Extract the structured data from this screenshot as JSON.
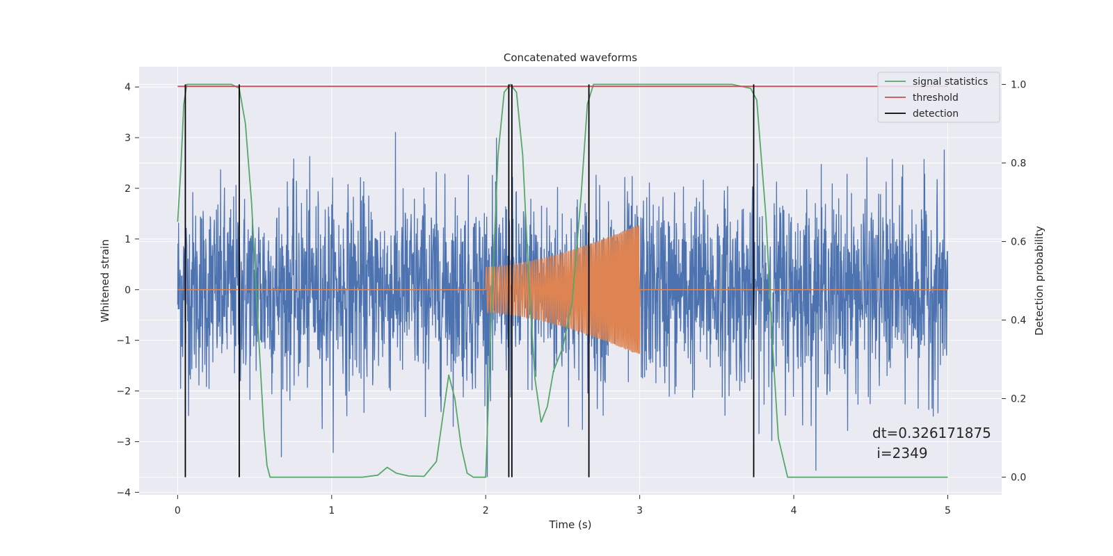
{
  "chart_data": {
    "type": "line",
    "title": "Concatenated waveforms",
    "xlabel": "Time (s)",
    "ylabel": "Whitened strain",
    "ylabel_right": "Detection probability",
    "xlim": [
      -0.25,
      5.35
    ],
    "ylim": [
      -4.05,
      4.4
    ],
    "ylim_right": [
      -0.045,
      1.045
    ],
    "x_ticks": [
      0,
      1,
      2,
      3,
      4,
      5
    ],
    "y_ticks": [
      -4,
      -3,
      -2,
      -1,
      0,
      1,
      2,
      3,
      4
    ],
    "y_ticks_right": [
      0.0,
      0.2,
      0.4,
      0.6,
      0.8,
      1.0
    ],
    "grid": true,
    "legend_position": "top-right",
    "series": [
      {
        "name": "",
        "axis": "left",
        "kind": "noise",
        "color": "#4c72b0",
        "x_range": [
          0,
          5
        ],
        "notes": "whitened strain noise, amplitude mostly within about ±2, peaks near ±4"
      },
      {
        "name": "",
        "axis": "left",
        "kind": "chirp",
        "color": "#dd8452",
        "x_range": [
          2.0,
          3.0
        ],
        "amplitude_start": 0.45,
        "amplitude_end": 1.3
      },
      {
        "name": "signal statistics",
        "axis": "right",
        "color": "#55a868",
        "x": [
          0.0,
          0.02,
          0.04,
          0.06,
          0.1,
          0.2,
          0.35,
          0.4,
          0.44,
          0.48,
          0.52,
          0.56,
          0.58,
          0.6,
          0.7,
          1.0,
          1.2,
          1.3,
          1.36,
          1.42,
          1.5,
          1.6,
          1.68,
          1.72,
          1.76,
          1.8,
          1.84,
          1.88,
          1.92,
          2.0,
          2.04,
          2.08,
          2.12,
          2.16,
          2.2,
          2.24,
          2.28,
          2.32,
          2.36,
          2.4,
          2.44,
          2.5,
          2.56,
          2.62,
          2.66,
          2.7,
          2.8,
          3.2,
          3.6,
          3.72,
          3.76,
          3.82,
          3.86,
          3.9,
          3.96,
          4.2,
          4.6,
          5.0
        ],
        "values": [
          0.65,
          0.78,
          0.95,
          1.0,
          1.0,
          1.0,
          1.0,
          0.99,
          0.9,
          0.7,
          0.4,
          0.12,
          0.03,
          0.0,
          0.0,
          0.0,
          0.0,
          0.005,
          0.025,
          0.01,
          0.003,
          0.002,
          0.04,
          0.15,
          0.26,
          0.2,
          0.08,
          0.01,
          0.0,
          0.0,
          0.45,
          0.82,
          0.98,
          1.0,
          0.98,
          0.82,
          0.5,
          0.25,
          0.14,
          0.18,
          0.27,
          0.33,
          0.44,
          0.72,
          0.95,
          1.0,
          1.0,
          1.0,
          1.0,
          0.99,
          0.96,
          0.66,
          0.35,
          0.1,
          0.0,
          0.0,
          0.0,
          0.0
        ]
      },
      {
        "name": "threshold",
        "axis": "right",
        "color": "#c44e52",
        "x": [
          0.0,
          5.0
        ],
        "values": [
          0.995,
          0.995
        ]
      },
      {
        "name": "detection",
        "axis": "right",
        "kind": "vlines",
        "color": "#000000",
        "x": [
          0.05,
          0.4,
          2.15,
          2.17,
          2.67,
          3.74
        ],
        "ymin": 0.0,
        "ymax": 1.0
      }
    ],
    "annotation": {
      "line1": "dt=0.326171875",
      "line2": " i=2349",
      "x": 4.5,
      "y": -3.0
    }
  },
  "colors": {
    "plot_background": "#eaeaf2",
    "grid": "#ffffff"
  }
}
